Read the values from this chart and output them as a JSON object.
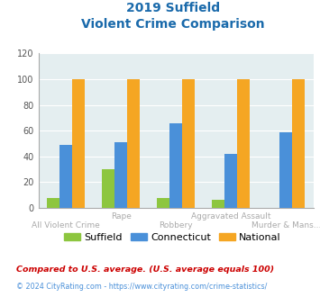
{
  "title_line1": "2019 Suffield",
  "title_line2": "Violent Crime Comparison",
  "categories": [
    "All Violent Crime",
    "Rape",
    "Robbery",
    "Aggravated Assault",
    "Murder & Mans..."
  ],
  "suffield": [
    8,
    30,
    8,
    6,
    0
  ],
  "connecticut": [
    49,
    51,
    66,
    42,
    59
  ],
  "national": [
    100,
    100,
    100,
    100,
    100
  ],
  "color_suffield": "#8dc63f",
  "color_connecticut": "#4a90d9",
  "color_national": "#f5a623",
  "ylim": [
    0,
    120
  ],
  "yticks": [
    0,
    20,
    40,
    60,
    80,
    100,
    120
  ],
  "bg_color": "#e4eef0",
  "title_color": "#1a6aab",
  "footnote1": "Compared to U.S. average. (U.S. average equals 100)",
  "footnote2": "© 2024 CityRating.com - https://www.cityrating.com/crime-statistics/",
  "footnote1_color": "#cc0000",
  "footnote2_color": "#4a90d9",
  "cat_label_color": "#aaaaaa",
  "legend_label_color": "#333333"
}
